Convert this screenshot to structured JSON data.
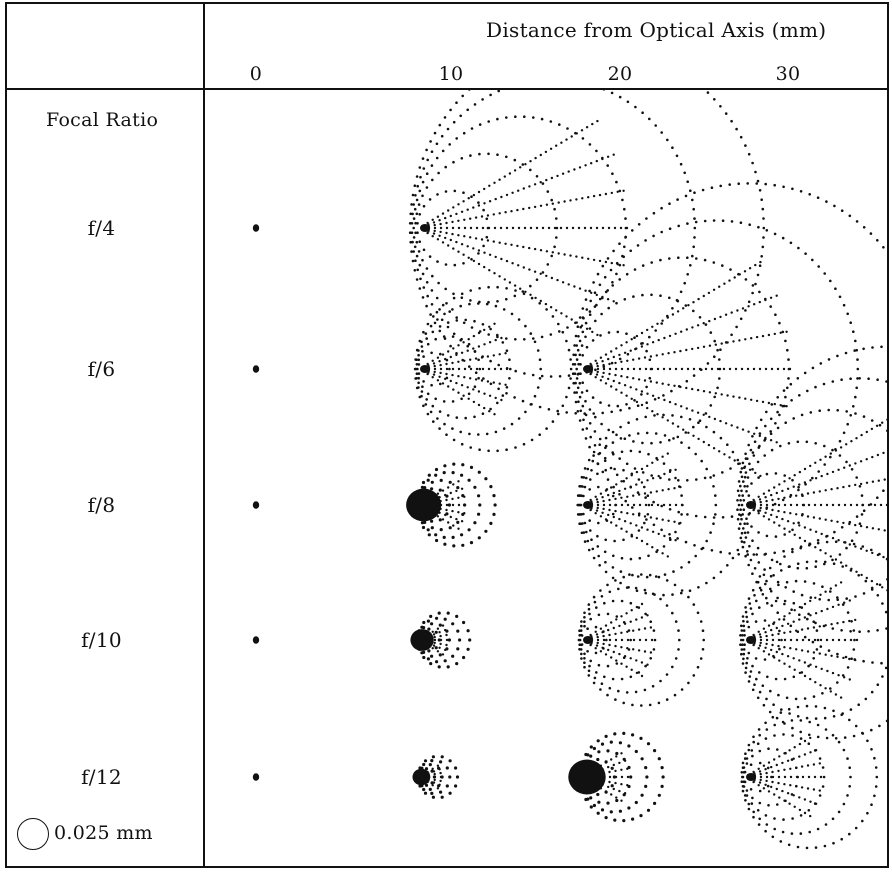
{
  "header": {
    "axis_title": "Distance from Optical Axis (mm)",
    "ticks": [
      "0",
      "10",
      "20",
      "30"
    ]
  },
  "rows_header": "Focal Ratio",
  "rows": [
    {
      "label": "f/4",
      "spots": [
        {
          "pos": 0,
          "size": 0.25
        },
        {
          "pos": 10,
          "size": 3.4
        }
      ]
    },
    {
      "label": "f/6",
      "spots": [
        {
          "pos": 0,
          "size": 0.25
        },
        {
          "pos": 10,
          "size": 1.5
        },
        {
          "pos": 20,
          "size": 3.4
        }
      ]
    },
    {
      "label": "f/8",
      "spots": [
        {
          "pos": 0,
          "size": 0.25
        },
        {
          "pos": 10,
          "size": 0.75
        },
        {
          "pos": 20,
          "size": 1.65
        },
        {
          "pos": 30,
          "size": 2.9
        }
      ]
    },
    {
      "label": "f/10",
      "spots": [
        {
          "pos": 0,
          "size": 0.2
        },
        {
          "pos": 10,
          "size": 0.5
        },
        {
          "pos": 20,
          "size": 1.2
        },
        {
          "pos": 30,
          "size": 1.8
        }
      ]
    },
    {
      "label": "f/12",
      "spots": [
        {
          "pos": 0,
          "size": 0.18
        },
        {
          "pos": 10,
          "size": 0.38
        },
        {
          "pos": 20,
          "size": 0.8
        },
        {
          "pos": 30,
          "size": 1.3
        }
      ]
    }
  ],
  "scale_label": "0.025 mm",
  "colors": {
    "ink": "#111111",
    "background": "#ffffff"
  }
}
